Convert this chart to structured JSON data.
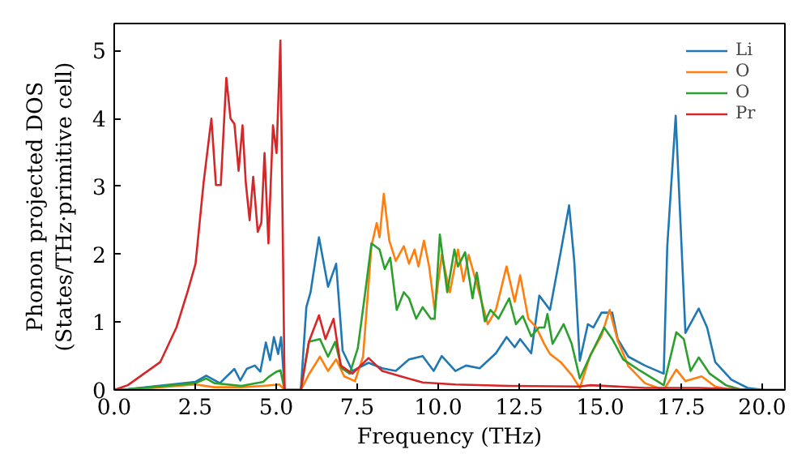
{
  "chart_data": {
    "type": "line",
    "xlabel": "Frequency (THz)",
    "ylabel": "Phonon projected DOS\n(States/THz·primitive cell)",
    "xlim": [
      0,
      20.7
    ],
    "ylim": [
      0,
      5.4
    ],
    "xticks": [
      {
        "value": 0,
        "label": "0.0"
      },
      {
        "value": 2.5,
        "label": "2.5"
      },
      {
        "value": 5,
        "label": "5.0"
      },
      {
        "value": 7.5,
        "label": "7.5"
      },
      {
        "value": 10,
        "label": "10.0"
      },
      {
        "value": 12.5,
        "label": "12.5"
      },
      {
        "value": 15,
        "label": "15.0"
      },
      {
        "value": 17.5,
        "label": "17.5"
      },
      {
        "value": 20,
        "label": "20.0"
      }
    ],
    "yticks": [
      0,
      1,
      2,
      3,
      4,
      5
    ],
    "legend": "top right",
    "grid": false,
    "series": [
      {
        "name": "Li",
        "color": "#1f77b4",
        "x": [
          0,
          0.42,
          2.51,
          2.84,
          3.26,
          3.71,
          3.89,
          4.09,
          4.34,
          4.51,
          4.68,
          4.81,
          4.93,
          5.06,
          5.15,
          5.26,
          5.76,
          5.93,
          6.06,
          6.32,
          6.6,
          6.85,
          7.05,
          7.35,
          7.85,
          8.27,
          8.69,
          9.1,
          9.52,
          9.86,
          10.11,
          10.53,
          10.86,
          11.28,
          11.78,
          12.11,
          12.36,
          12.53,
          12.87,
          13.12,
          13.45,
          13.78,
          14.04,
          14.2,
          14.37,
          14.62,
          14.79,
          15.04,
          15.37,
          15.54,
          15.87,
          16.38,
          16.96,
          17.07,
          17.33,
          17.63,
          18.04,
          18.3,
          18.55,
          19.05,
          19.55,
          20.05,
          20.7
        ],
        "values": [
          0,
          0.01,
          0.12,
          0.21,
          0.1,
          0.31,
          0.14,
          0.31,
          0.36,
          0.27,
          0.7,
          0.44,
          0.78,
          0.53,
          0.78,
          0,
          0,
          1.22,
          1.44,
          2.25,
          1.52,
          1.86,
          0.58,
          0.28,
          0.4,
          0.32,
          0.28,
          0.45,
          0.5,
          0.28,
          0.5,
          0.28,
          0.36,
          0.32,
          0.54,
          0.78,
          0.63,
          0.75,
          0.54,
          1.39,
          1.18,
          2.03,
          2.72,
          1.89,
          0.43,
          0.97,
          0.92,
          1.14,
          1.14,
          0.75,
          0.49,
          0.36,
          0.24,
          2.12,
          4.04,
          0.84,
          1.2,
          0.92,
          0.41,
          0.15,
          0.03,
          0,
          0
        ]
      },
      {
        "name": "O",
        "color": "#ff7f0e",
        "x": [
          0,
          0.42,
          2.51,
          3.09,
          3.93,
          4.6,
          5.1,
          5.26,
          5.76,
          6.01,
          6.35,
          6.6,
          6.85,
          7.1,
          7.43,
          7.68,
          7.94,
          8.1,
          8.19,
          8.32,
          8.49,
          8.69,
          8.94,
          9.1,
          9.27,
          9.39,
          9.56,
          9.72,
          9.89,
          10.11,
          10.36,
          10.61,
          10.78,
          10.94,
          11.19,
          11.53,
          11.78,
          12.11,
          12.36,
          12.53,
          12.78,
          13.03,
          13.28,
          13.45,
          13.78,
          14.12,
          14.37,
          14.7,
          15.04,
          15.29,
          15.54,
          15.87,
          16.38,
          16.96,
          17.35,
          17.63,
          18.13,
          18.55,
          19.05,
          20.7
        ],
        "values": [
          0,
          0,
          0.08,
          0.04,
          0.04,
          0.06,
          0.08,
          0,
          0,
          0.23,
          0.49,
          0.28,
          0.45,
          0.2,
          0.13,
          0.49,
          2.12,
          2.46,
          2.25,
          2.89,
          2.2,
          1.9,
          2.12,
          1.86,
          2.07,
          1.82,
          2.2,
          1.82,
          1.18,
          1.99,
          1.44,
          2.07,
          1.6,
          1.99,
          1.56,
          0.97,
          1.18,
          1.82,
          1.3,
          1.69,
          1.05,
          0.92,
          0.67,
          0.53,
          0.41,
          0.22,
          0.03,
          0.52,
          0.8,
          1.18,
          0.73,
          0.35,
          0.1,
          0,
          0.3,
          0.13,
          0.2,
          0.05,
          0,
          0
        ]
      },
      {
        "name": "O",
        "color": "#2ca02c",
        "x": [
          0,
          0.42,
          2.51,
          2.84,
          3.09,
          3.93,
          4.6,
          4.76,
          5.01,
          5.13,
          5.26,
          5.76,
          6.01,
          6.35,
          6.6,
          6.82,
          7.02,
          7.27,
          7.52,
          7.77,
          7.94,
          8.19,
          8.35,
          8.52,
          8.72,
          8.94,
          9.1,
          9.32,
          9.52,
          9.77,
          9.89,
          10.05,
          10.28,
          10.5,
          10.61,
          10.83,
          11.06,
          11.19,
          11.44,
          11.61,
          11.86,
          12.19,
          12.4,
          12.61,
          12.87,
          13.11,
          13.28,
          13.37,
          13.53,
          13.87,
          14.12,
          14.37,
          14.7,
          15.12,
          15.37,
          15.71,
          16.21,
          16.96,
          17.35,
          17.58,
          17.79,
          18.04,
          18.38,
          18.88,
          19.38,
          20.7
        ],
        "values": [
          0,
          0.01,
          0.1,
          0.17,
          0.1,
          0.06,
          0.12,
          0.19,
          0.27,
          0.29,
          0,
          0,
          0.71,
          0.75,
          0.49,
          0.71,
          0.32,
          0.24,
          0.62,
          1.52,
          2.16,
          2.07,
          1.78,
          1.95,
          1.18,
          1.44,
          1.35,
          1.05,
          1.22,
          1.05,
          1.05,
          2.29,
          1.44,
          2.07,
          1.82,
          2.03,
          1.35,
          1.73,
          1.01,
          1.18,
          1.05,
          1.35,
          0.97,
          1.09,
          0.79,
          0.92,
          0.92,
          1.12,
          0.68,
          0.97,
          0.68,
          0.17,
          0.51,
          0.92,
          0.75,
          0.45,
          0.29,
          0.07,
          0.85,
          0.75,
          0.28,
          0.48,
          0.24,
          0.07,
          0,
          0
        ]
      },
      {
        "name": "Pr",
        "color": "#d62728",
        "x": [
          0,
          0.42,
          1.42,
          1.92,
          2.26,
          2.51,
          2.76,
          3.0,
          3.14,
          3.29,
          3.46,
          3.59,
          3.71,
          3.84,
          3.96,
          4.06,
          4.18,
          4.29,
          4.43,
          4.54,
          4.64,
          4.76,
          4.9,
          5.01,
          5.13,
          5.26,
          5.76,
          6.01,
          6.32,
          6.52,
          6.77,
          6.99,
          7.35,
          7.85,
          8.27,
          8.85,
          9.52,
          10.53,
          12.19,
          14.37,
          14.7,
          16.38,
          18.04,
          20.05
        ],
        "values": [
          0,
          0.07,
          0.41,
          0.92,
          1.44,
          1.86,
          3.06,
          4.0,
          3.02,
          3.02,
          4.6,
          4.0,
          3.92,
          3.23,
          3.9,
          3.06,
          2.5,
          3.14,
          2.33,
          2.46,
          3.49,
          2.16,
          3.9,
          3.49,
          5.15,
          0,
          0,
          0.71,
          1.1,
          0.75,
          1.05,
          0.36,
          0.24,
          0.47,
          0.28,
          0.2,
          0.11,
          0.08,
          0.06,
          0.05,
          0.07,
          0.03,
          0.03,
          0
        ]
      }
    ]
  }
}
